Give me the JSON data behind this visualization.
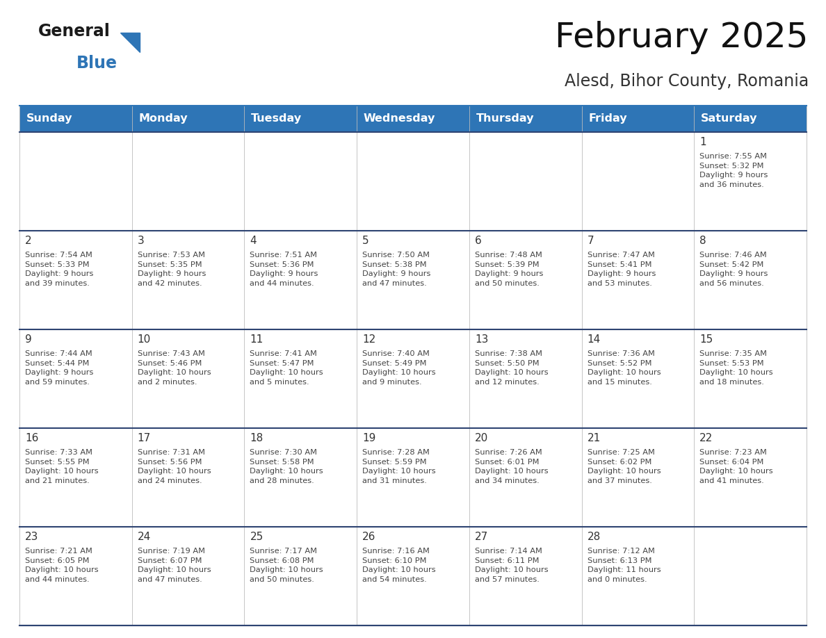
{
  "title": "February 2025",
  "subtitle": "Alesd, Bihor County, Romania",
  "header_color": "#2E75B6",
  "header_text_color": "#FFFFFF",
  "text_color": "#333333",
  "line_color": "#2E4472",
  "days_of_week": [
    "Sunday",
    "Monday",
    "Tuesday",
    "Wednesday",
    "Thursday",
    "Friday",
    "Saturday"
  ],
  "calendar": [
    [
      {
        "day": null,
        "info": null
      },
      {
        "day": null,
        "info": null
      },
      {
        "day": null,
        "info": null
      },
      {
        "day": null,
        "info": null
      },
      {
        "day": null,
        "info": null
      },
      {
        "day": null,
        "info": null
      },
      {
        "day": 1,
        "info": "Sunrise: 7:55 AM\nSunset: 5:32 PM\nDaylight: 9 hours\nand 36 minutes."
      }
    ],
    [
      {
        "day": 2,
        "info": "Sunrise: 7:54 AM\nSunset: 5:33 PM\nDaylight: 9 hours\nand 39 minutes."
      },
      {
        "day": 3,
        "info": "Sunrise: 7:53 AM\nSunset: 5:35 PM\nDaylight: 9 hours\nand 42 minutes."
      },
      {
        "day": 4,
        "info": "Sunrise: 7:51 AM\nSunset: 5:36 PM\nDaylight: 9 hours\nand 44 minutes."
      },
      {
        "day": 5,
        "info": "Sunrise: 7:50 AM\nSunset: 5:38 PM\nDaylight: 9 hours\nand 47 minutes."
      },
      {
        "day": 6,
        "info": "Sunrise: 7:48 AM\nSunset: 5:39 PM\nDaylight: 9 hours\nand 50 minutes."
      },
      {
        "day": 7,
        "info": "Sunrise: 7:47 AM\nSunset: 5:41 PM\nDaylight: 9 hours\nand 53 minutes."
      },
      {
        "day": 8,
        "info": "Sunrise: 7:46 AM\nSunset: 5:42 PM\nDaylight: 9 hours\nand 56 minutes."
      }
    ],
    [
      {
        "day": 9,
        "info": "Sunrise: 7:44 AM\nSunset: 5:44 PM\nDaylight: 9 hours\nand 59 minutes."
      },
      {
        "day": 10,
        "info": "Sunrise: 7:43 AM\nSunset: 5:46 PM\nDaylight: 10 hours\nand 2 minutes."
      },
      {
        "day": 11,
        "info": "Sunrise: 7:41 AM\nSunset: 5:47 PM\nDaylight: 10 hours\nand 5 minutes."
      },
      {
        "day": 12,
        "info": "Sunrise: 7:40 AM\nSunset: 5:49 PM\nDaylight: 10 hours\nand 9 minutes."
      },
      {
        "day": 13,
        "info": "Sunrise: 7:38 AM\nSunset: 5:50 PM\nDaylight: 10 hours\nand 12 minutes."
      },
      {
        "day": 14,
        "info": "Sunrise: 7:36 AM\nSunset: 5:52 PM\nDaylight: 10 hours\nand 15 minutes."
      },
      {
        "day": 15,
        "info": "Sunrise: 7:35 AM\nSunset: 5:53 PM\nDaylight: 10 hours\nand 18 minutes."
      }
    ],
    [
      {
        "day": 16,
        "info": "Sunrise: 7:33 AM\nSunset: 5:55 PM\nDaylight: 10 hours\nand 21 minutes."
      },
      {
        "day": 17,
        "info": "Sunrise: 7:31 AM\nSunset: 5:56 PM\nDaylight: 10 hours\nand 24 minutes."
      },
      {
        "day": 18,
        "info": "Sunrise: 7:30 AM\nSunset: 5:58 PM\nDaylight: 10 hours\nand 28 minutes."
      },
      {
        "day": 19,
        "info": "Sunrise: 7:28 AM\nSunset: 5:59 PM\nDaylight: 10 hours\nand 31 minutes."
      },
      {
        "day": 20,
        "info": "Sunrise: 7:26 AM\nSunset: 6:01 PM\nDaylight: 10 hours\nand 34 minutes."
      },
      {
        "day": 21,
        "info": "Sunrise: 7:25 AM\nSunset: 6:02 PM\nDaylight: 10 hours\nand 37 minutes."
      },
      {
        "day": 22,
        "info": "Sunrise: 7:23 AM\nSunset: 6:04 PM\nDaylight: 10 hours\nand 41 minutes."
      }
    ],
    [
      {
        "day": 23,
        "info": "Sunrise: 7:21 AM\nSunset: 6:05 PM\nDaylight: 10 hours\nand 44 minutes."
      },
      {
        "day": 24,
        "info": "Sunrise: 7:19 AM\nSunset: 6:07 PM\nDaylight: 10 hours\nand 47 minutes."
      },
      {
        "day": 25,
        "info": "Sunrise: 7:17 AM\nSunset: 6:08 PM\nDaylight: 10 hours\nand 50 minutes."
      },
      {
        "day": 26,
        "info": "Sunrise: 7:16 AM\nSunset: 6:10 PM\nDaylight: 10 hours\nand 54 minutes."
      },
      {
        "day": 27,
        "info": "Sunrise: 7:14 AM\nSunset: 6:11 PM\nDaylight: 10 hours\nand 57 minutes."
      },
      {
        "day": 28,
        "info": "Sunrise: 7:12 AM\nSunset: 6:13 PM\nDaylight: 11 hours\nand 0 minutes."
      },
      {
        "day": null,
        "info": null
      }
    ]
  ],
  "logo_general_color": "#1a1a1a",
  "logo_blue_color": "#2E75B6",
  "logo_triangle_color": "#2E75B6",
  "title_fontsize": 36,
  "subtitle_fontsize": 17,
  "header_fontsize": 11.5,
  "day_num_fontsize": 11,
  "cell_text_fontsize": 8.2
}
